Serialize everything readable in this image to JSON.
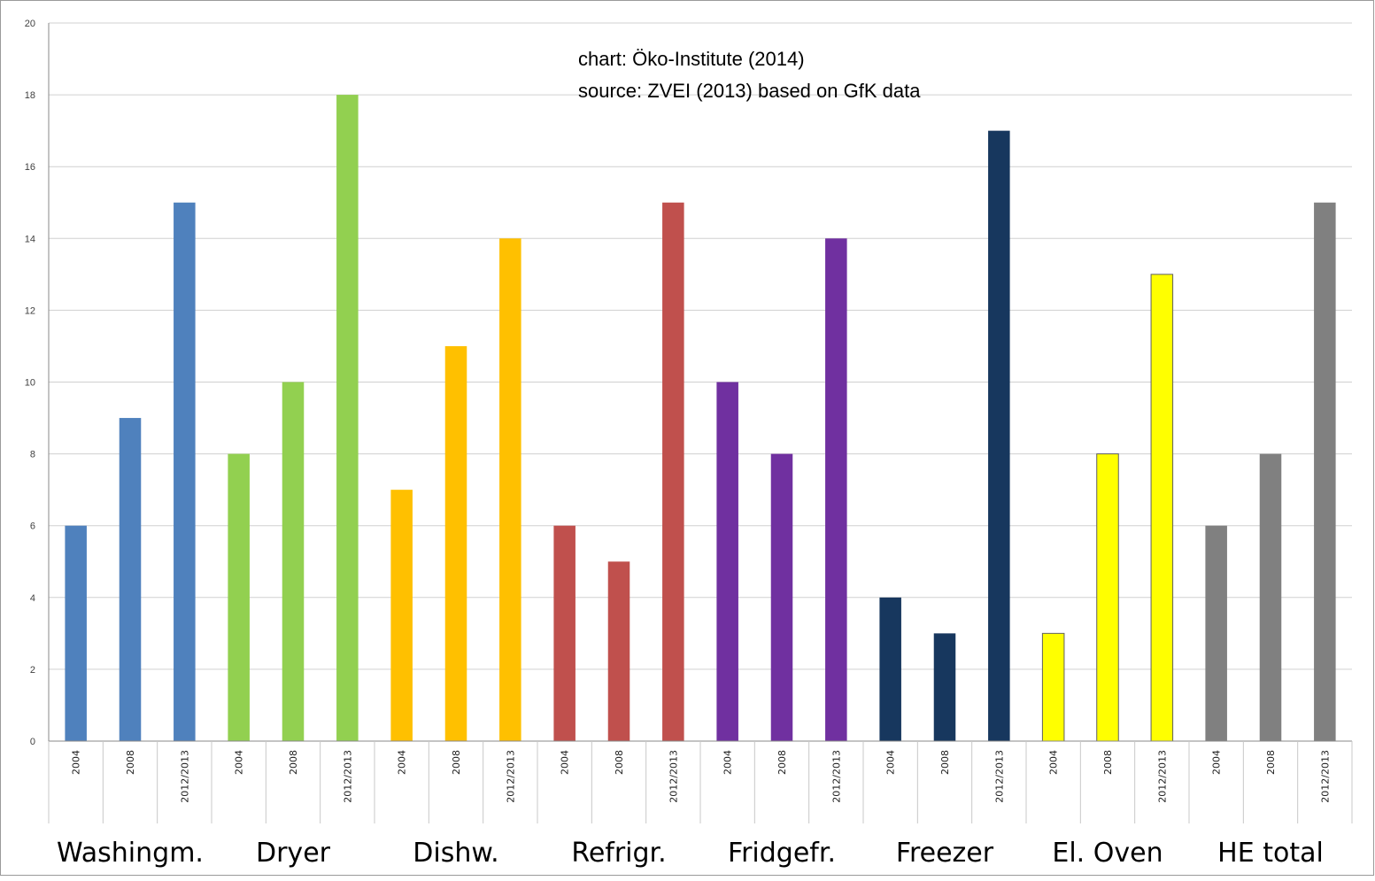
{
  "chart_data": {
    "type": "bar",
    "annotation": {
      "line1": "chart: Öko-Institute (2014)",
      "line2": "source: ZVEI (2013) based on GfK data"
    },
    "ylim": [
      0,
      20
    ],
    "yticks": [
      "0",
      "2",
      "4",
      "6",
      "8",
      "10",
      "12",
      "14",
      "16",
      "18",
      "20"
    ],
    "grid": true,
    "legend": "none",
    "groups": [
      {
        "name": "Washingm.",
        "color": "#4F81BD",
        "years": [
          "2004",
          "2008",
          "2012/2013"
        ],
        "values": [
          6,
          9,
          15
        ]
      },
      {
        "name": "Dryer",
        "color": "#92D050",
        "years": [
          "2004",
          "2008",
          "2012/2013"
        ],
        "values": [
          8,
          10,
          18
        ]
      },
      {
        "name": "Dishw.",
        "color": "#FFC000",
        "years": [
          "2004",
          "2008",
          "2012/2013"
        ],
        "values": [
          7,
          11,
          14
        ]
      },
      {
        "name": "Refrigr.",
        "color": "#C0504D",
        "years": [
          "2004",
          "2008",
          "2012/2013"
        ],
        "values": [
          6,
          5,
          15
        ]
      },
      {
        "name": "Fridgefr.",
        "color": "#7030A0",
        "years": [
          "2004",
          "2008",
          "2012/2013"
        ],
        "values": [
          10,
          8,
          14
        ]
      },
      {
        "name": "Freezer",
        "color": "#17375E",
        "years": [
          "2004",
          "2008",
          "2012/2013"
        ],
        "values": [
          4,
          3,
          17
        ]
      },
      {
        "name": "El. Oven",
        "color": "#FFFF00",
        "years": [
          "2004",
          "2008",
          "2012/2013"
        ],
        "values": [
          3,
          8,
          13
        ]
      },
      {
        "name": "HE total",
        "color": "#808080",
        "years": [
          "2004",
          "2008",
          "2012/2013"
        ],
        "values": [
          6,
          8,
          15
        ]
      }
    ]
  }
}
